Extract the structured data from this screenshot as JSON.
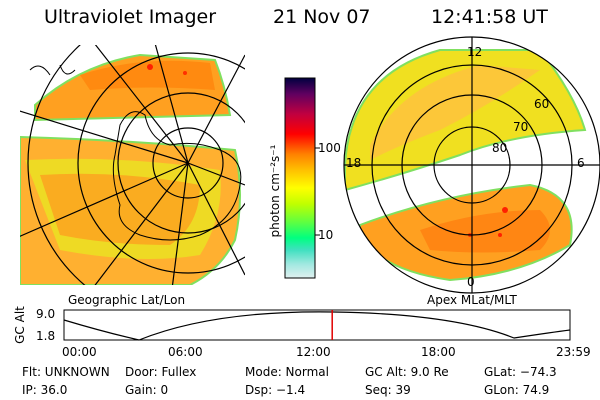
{
  "header": {
    "instrument": "Ultraviolet Imager",
    "date": "21 Nov 07",
    "time": "12:41:58 UT"
  },
  "left_map": {
    "caption": "Geographic Lat/Lon"
  },
  "right_map": {
    "caption": "Apex MLat/MLT",
    "mlt_labels": [
      "12",
      "18",
      "6",
      "0"
    ],
    "mlat_labels": [
      "60",
      "70",
      "80"
    ]
  },
  "colorbar": {
    "unit": "photon cm⁻²s⁻¹",
    "ticks": [
      "100",
      "10"
    ],
    "scale": "log",
    "colors": [
      "#000040",
      "#600060",
      "#c00040",
      "#ff0000",
      "#ff8000",
      "#ffc000",
      "#ffff00",
      "#c0ff00",
      "#60ff40",
      "#00ff80",
      "#40e0c0",
      "#a0e8e0",
      "#e0f0f0"
    ]
  },
  "altitude_plot": {
    "ylabel": "GC Alt",
    "ytop": "9.0",
    "ybottom": "1.8",
    "xticks": [
      "00:00",
      "06:00",
      "12:00",
      "18:00",
      "23:59"
    ],
    "current_time_fraction": 0.53
  },
  "status": {
    "row1": {
      "flt": "Flt: UNKNOWN",
      "door": "Door: Fullex",
      "mode": "Mode: Normal",
      "gcalt": "GC Alt: 9.0 Re",
      "glat": "GLat: −74.3"
    },
    "row2": {
      "ip": "IP: 36.0",
      "gain": "Gain:  0",
      "dsp": "Dsp:    −1.4",
      "seq": "Seq: 39",
      "glon": "GLon:  74.9"
    }
  }
}
